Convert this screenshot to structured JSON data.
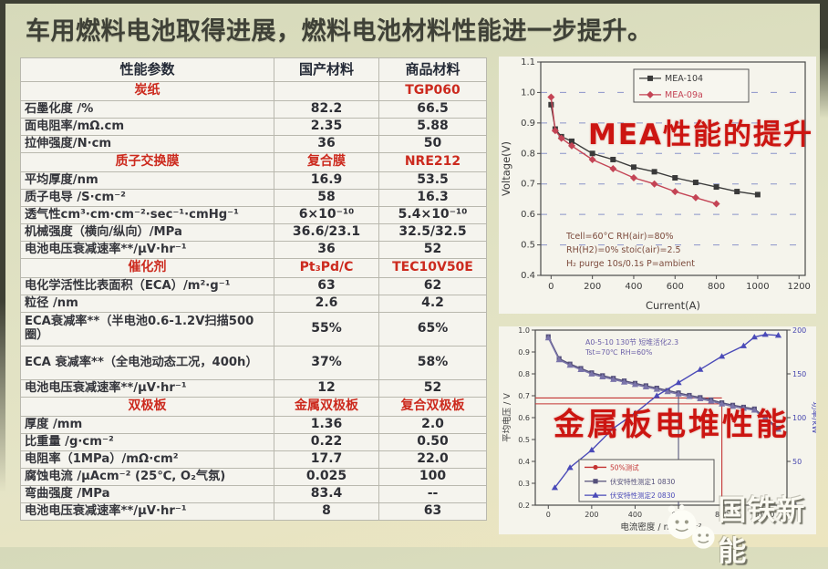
{
  "title": "车用燃料电池取得进展，燃料电池材料性能进一步提升。",
  "table": {
    "headers": [
      "性能参数",
      "国产材料",
      "商品材料"
    ],
    "rows": [
      {
        "type": "section",
        "param": "炭纸",
        "domestic": "",
        "commercial": "TGP060"
      },
      {
        "type": "data",
        "param": "石墨化度 /%",
        "domestic": "82.2",
        "commercial": "66.5"
      },
      {
        "type": "data",
        "param": "面电阻率/mΩ.cm",
        "domestic": "2.35",
        "commercial": "5.88"
      },
      {
        "type": "data",
        "param": "拉伸强度/N·cm",
        "domestic": "36",
        "commercial": "50"
      },
      {
        "type": "section",
        "param": "质子交换膜",
        "domestic": "复合膜",
        "commercial": "NRE212"
      },
      {
        "type": "data",
        "param": "平均厚度/nm",
        "domestic": "16.9",
        "commercial": "53.5"
      },
      {
        "type": "data",
        "param": "质子电导 /S·cm⁻²",
        "domestic": "58",
        "commercial": "16.3"
      },
      {
        "type": "data",
        "param": "透气性cm³·cm·cm⁻²·sec⁻¹·cmHg⁻¹",
        "domestic": "6×10⁻¹⁰",
        "commercial": "5.4×10⁻¹⁰"
      },
      {
        "type": "data",
        "param": "机械强度（横向/纵向）/MPa",
        "domestic": "36.6/23.1",
        "commercial": "32.5/32.5"
      },
      {
        "type": "data",
        "param": "电池电压衰减速率**/μV·hr⁻¹",
        "domestic": "36",
        "commercial": "52"
      },
      {
        "type": "section",
        "param": "催化剂",
        "domestic": "Pt₃Pd/C",
        "commercial": "TEC10V50E"
      },
      {
        "type": "data",
        "param": "电化学活性比表面积（ECA）/m²·g⁻¹",
        "domestic": "63",
        "commercial": "62"
      },
      {
        "type": "data",
        "param": "粒径 /nm",
        "domestic": "2.6",
        "commercial": "4.2"
      },
      {
        "type": "data",
        "tall": true,
        "param": "ECA衰减率**（半电池0.6-1.2V扫描500圈）",
        "domestic": "55%",
        "commercial": "65%"
      },
      {
        "type": "data",
        "tall": true,
        "param": "ECA 衰减率**（全电池动态工况，400h）",
        "domestic": "37%",
        "commercial": "58%"
      },
      {
        "type": "data",
        "param": "电池电压衰减速率**/μV·hr⁻¹",
        "domestic": "12",
        "commercial": "52"
      },
      {
        "type": "section",
        "param": "双极板",
        "domestic": "金属双极板",
        "commercial": "复合双极板"
      },
      {
        "type": "data",
        "param": "厚度 /mm",
        "domestic": "1.36",
        "commercial": "2.0"
      },
      {
        "type": "data",
        "param": "比重量 /g·cm⁻²",
        "domestic": "0.22",
        "commercial": "0.50"
      },
      {
        "type": "data",
        "param": "电阻率（1MPa）/mΩ·cm²",
        "domestic": "17.7",
        "commercial": "22.0"
      },
      {
        "type": "data",
        "param": "腐蚀电流 /μAcm⁻² (25℃, O₂气氛)",
        "domestic": "0.025",
        "commercial": "100"
      },
      {
        "type": "data",
        "param": "弯曲强度 /MPa",
        "domestic": "83.4",
        "commercial": "--"
      },
      {
        "type": "data",
        "param": "电池电压衰减速率**/μV·hr⁻¹",
        "domestic": "8",
        "commercial": "63"
      }
    ]
  },
  "chart_data": [
    {
      "type": "line",
      "title_overlay": "MEA性能的提升",
      "xlabel": "Current(A)",
      "ylabel": "Voltage(V)",
      "xlim": [
        -50,
        1230
      ],
      "ylim": [
        0.4,
        1.1
      ],
      "xticks": [
        0,
        200,
        400,
        600,
        800,
        1000,
        1200
      ],
      "yticks": [
        "0.4",
        "0.5",
        "0.6",
        "0.7",
        "0.8",
        "0.9",
        "1.0",
        "1.1"
      ],
      "grid": "dashed-horizontal",
      "legend_position": "top-center",
      "annotation": [
        "Tcell=60°C RH(air)=80%",
        "RH(H2)=0%  stoic(air)=2.5",
        "H₂ purge 10s/0.1s  P=ambient"
      ],
      "legend": [
        {
          "name": "MEA-104",
          "color": "#3a3a3a",
          "marker": "square"
        },
        {
          "name": "MEA-09a",
          "color": "#c44455",
          "marker": "diamond"
        }
      ],
      "series": [
        {
          "name": "MEA-104",
          "color": "#3a3a3a",
          "marker": "square",
          "x": [
            0,
            20,
            50,
            100,
            200,
            300,
            400,
            500,
            600,
            700,
            800,
            900,
            1000
          ],
          "y": [
            0.96,
            0.88,
            0.855,
            0.84,
            0.8,
            0.78,
            0.755,
            0.74,
            0.72,
            0.705,
            0.69,
            0.675,
            0.665
          ]
        },
        {
          "name": "MEA-09a",
          "color": "#c44455",
          "marker": "diamond",
          "x": [
            0,
            20,
            50,
            100,
            200,
            300,
            400,
            500,
            600,
            700,
            800
          ],
          "y": [
            0.985,
            0.875,
            0.85,
            0.825,
            0.78,
            0.75,
            0.72,
            0.7,
            0.675,
            0.655,
            0.635
          ]
        }
      ]
    },
    {
      "type": "line",
      "title_overlay": "金属板电堆性能",
      "xlabel": "电流密度 / mA·cm⁻²",
      "ylabel_left": "平均电压 / V",
      "ylabel_right": "功率/kW",
      "xlim": [
        -60,
        1100
      ],
      "ylim_left": [
        0.2,
        1.0
      ],
      "ylim_right": [
        0,
        200
      ],
      "xticks": [
        0,
        200,
        400,
        600,
        800,
        1000
      ],
      "yticks_left": [
        "0.2",
        "0.3",
        "0.4",
        "0.5",
        "0.6",
        "0.7",
        "0.8",
        "0.9",
        "1.0"
      ],
      "yticks_right": [
        0,
        50,
        100,
        150,
        200
      ],
      "annotation": [
        "A0-5-10 130节 短堆活化2.3",
        "Tst=70℃  RH=60%"
      ],
      "legend": [
        {
          "name": "50%测试",
          "color": "#c43333",
          "marker": "circle"
        },
        {
          "name": "伏安特性测定1 0830",
          "color": "#55507a",
          "marker": "square"
        },
        {
          "name": "伏安特性测定2 0830",
          "color": "#4a4ab8",
          "marker": "triangle"
        }
      ],
      "reference_lines": {
        "horizontal": [
          {
            "y": 0.69,
            "x_to": 800,
            "color": "#c43333"
          },
          {
            "y": 0.663,
            "x_to": 800,
            "color": "#c43333"
          }
        ],
        "vertical": [
          {
            "x": 600,
            "y_from": 0.725,
            "color": "#55557a"
          },
          {
            "x": 800,
            "y_from": 0.663,
            "color": "#c43333"
          }
        ]
      },
      "series": [
        {
          "name": "伏安特性测定1",
          "axis": "left",
          "color": "#55507a",
          "marker": "square",
          "x": [
            0,
            50,
            100,
            150,
            200,
            250,
            300,
            350,
            400,
            450,
            500,
            550,
            600,
            650,
            700,
            750,
            800,
            850,
            900,
            950,
            1000,
            1060
          ],
          "y": [
            0.97,
            0.87,
            0.845,
            0.825,
            0.805,
            0.792,
            0.78,
            0.768,
            0.757,
            0.746,
            0.735,
            0.724,
            0.713,
            0.702,
            0.692,
            0.681,
            0.668,
            0.657,
            0.648,
            0.64,
            0.6,
            0.552
          ]
        },
        {
          "name": "伏安特性测定2",
          "axis": "left",
          "color": "#7a74aa",
          "marker": "triangle",
          "x": [
            0,
            50,
            100,
            150,
            200,
            250,
            300,
            350,
            400,
            450,
            500,
            550,
            600,
            650,
            700,
            750,
            800,
            850,
            900,
            950,
            1000,
            1060
          ],
          "y": [
            0.964,
            0.864,
            0.839,
            0.819,
            0.799,
            0.786,
            0.774,
            0.762,
            0.751,
            0.74,
            0.729,
            0.718,
            0.707,
            0.696,
            0.686,
            0.675,
            0.662,
            0.651,
            0.642,
            0.634,
            0.594,
            0.546
          ]
        },
        {
          "name": "功率",
          "axis": "right",
          "color": "#4a4ab8",
          "marker": "triangle",
          "x": [
            30,
            100,
            200,
            300,
            400,
            500,
            600,
            700,
            800,
            900,
            950,
            1000,
            1060
          ],
          "y": [
            20,
            43,
            63,
            88,
            105,
            125,
            140,
            155,
            170,
            182,
            192,
            195,
            194
          ]
        }
      ]
    }
  ],
  "logo": {
    "icon": "wechat-bubbles-icon",
    "text": "国铁新能"
  }
}
